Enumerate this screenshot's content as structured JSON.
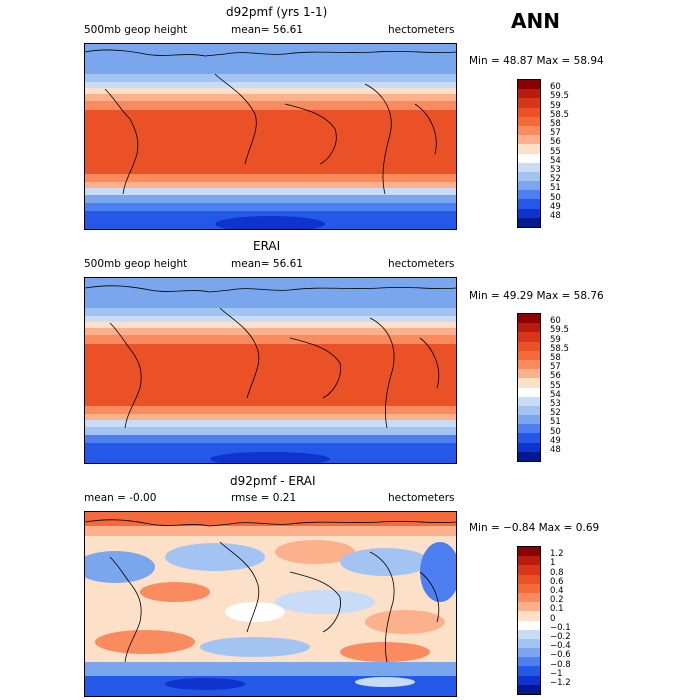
{
  "season": "ANN",
  "panels": [
    {
      "title": "d92pmf (yrs 1-1)",
      "left_label": "500mb geop height",
      "center_label": "mean=  56.61",
      "right_label": "hectometers",
      "minmax": "Min =  48.87 Max =  58.94",
      "levels": [
        "60",
        "59.5",
        "59",
        "58.5",
        "58",
        "57",
        "56",
        "55",
        "54",
        "53",
        "52",
        "51",
        "50",
        "49",
        "48"
      ],
      "colors": [
        "#8b0000",
        "#b81c0c",
        "#d8351b",
        "#ea5127",
        "#f56a3a",
        "#fa8b5f",
        "#fcb08c",
        "#fde0c8",
        "#ffffff",
        "#c8dcf7",
        "#a3c4f2",
        "#7aa6ee",
        "#4d7ff0",
        "#2459e8",
        "#0f33cf",
        "#001a8e"
      ],
      "map_type": "absolute"
    },
    {
      "title": "ERAI",
      "left_label": "500mb geop height",
      "center_label": "mean=  56.61",
      "right_label": "hectometers",
      "minmax": "Min =  49.29 Max =  58.76",
      "levels": [
        "60",
        "59.5",
        "59",
        "58.5",
        "58",
        "57",
        "56",
        "55",
        "54",
        "53",
        "52",
        "51",
        "50",
        "49",
        "48"
      ],
      "colors": [
        "#8b0000",
        "#b81c0c",
        "#d8351b",
        "#ea5127",
        "#f56a3a",
        "#fa8b5f",
        "#fcb08c",
        "#fde0c8",
        "#ffffff",
        "#c8dcf7",
        "#a3c4f2",
        "#7aa6ee",
        "#4d7ff0",
        "#2459e8",
        "#0f33cf",
        "#001a8e"
      ],
      "map_type": "absolute"
    },
    {
      "title": "d92pmf - ERAI",
      "left_label": "mean =  -0.00",
      "center_label": "rmse =   0.21",
      "right_label": "hectometers",
      "minmax": "Min = −0.84 Max =   0.69",
      "levels": [
        "1.2",
        "1",
        "0.8",
        "0.6",
        "0.4",
        "0.2",
        "0.1",
        "0",
        "−0.1",
        "−0.2",
        "−0.4",
        "−0.6",
        "−0.8",
        "−1",
        "−1.2"
      ],
      "colors": [
        "#8b0000",
        "#b81c0c",
        "#d8351b",
        "#ea5127",
        "#f56a3a",
        "#fa8b5f",
        "#fcb08c",
        "#fde0c8",
        "#ffffff",
        "#c8dcf7",
        "#a3c4f2",
        "#7aa6ee",
        "#4d7ff0",
        "#2459e8",
        "#0f33cf",
        "#001a8e"
      ],
      "map_type": "difference"
    }
  ]
}
